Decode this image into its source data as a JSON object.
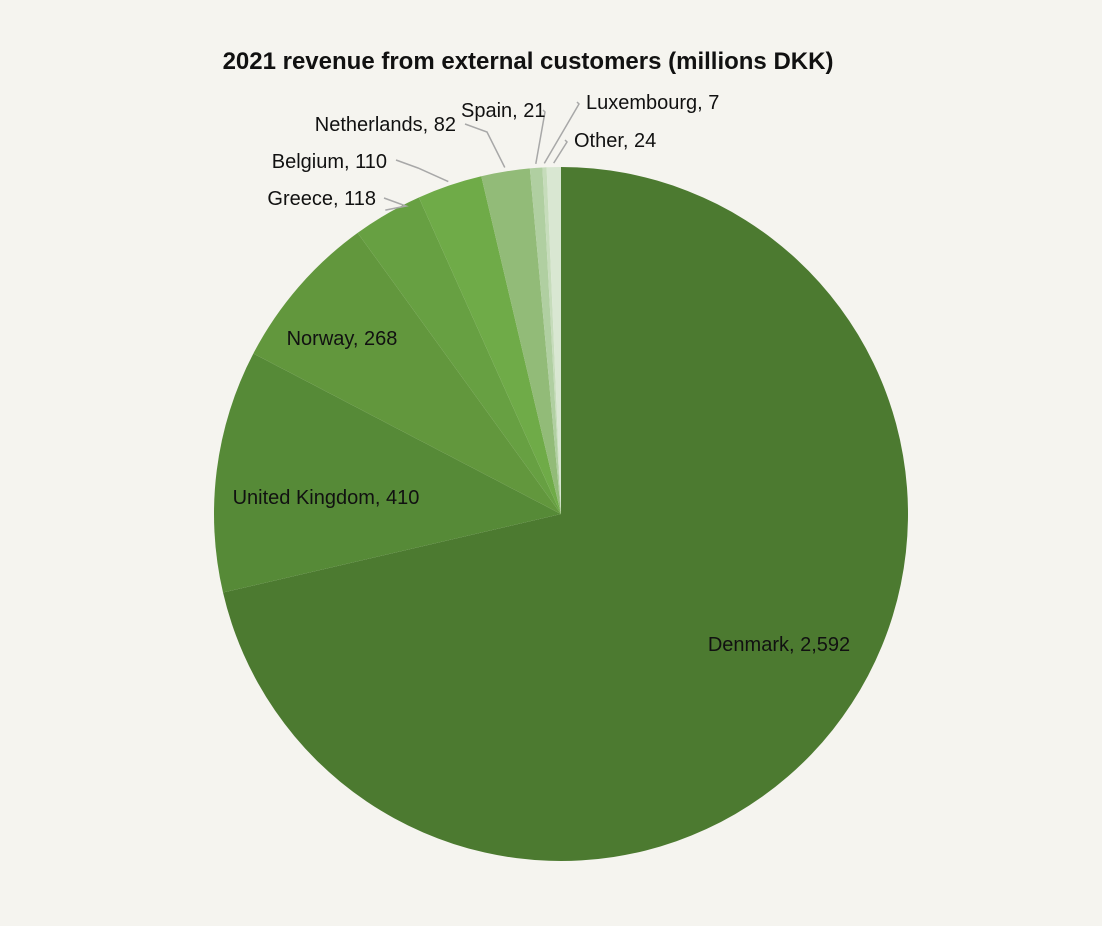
{
  "chart_data": {
    "type": "pie",
    "title": "2021 revenue from external customers (millions DKK)",
    "slices": [
      {
        "label": "Denmark, 2,592",
        "value": 2592,
        "color": "#4c7a30"
      },
      {
        "label": "United Kingdom, 410",
        "value": 410,
        "color": "#568a37"
      },
      {
        "label": "Norway, 268",
        "value": 268,
        "color": "#62973d"
      },
      {
        "label": "Greece, 118",
        "value": 118,
        "color": "#67a042"
      },
      {
        "label": "Belgium, 110",
        "value": 110,
        "color": "#6fab48"
      },
      {
        "label": "Netherlands, 82",
        "value": 82,
        "color": "#92bb78"
      },
      {
        "label": "Spain, 21",
        "value": 21,
        "color": "#b0cfa1"
      },
      {
        "label": "Luxembourg, 7",
        "value": 7,
        "color": "#c6dcbb"
      },
      {
        "label": "Other, 24",
        "value": 24,
        "color": "#d9e7d2"
      }
    ],
    "legend": "none"
  }
}
